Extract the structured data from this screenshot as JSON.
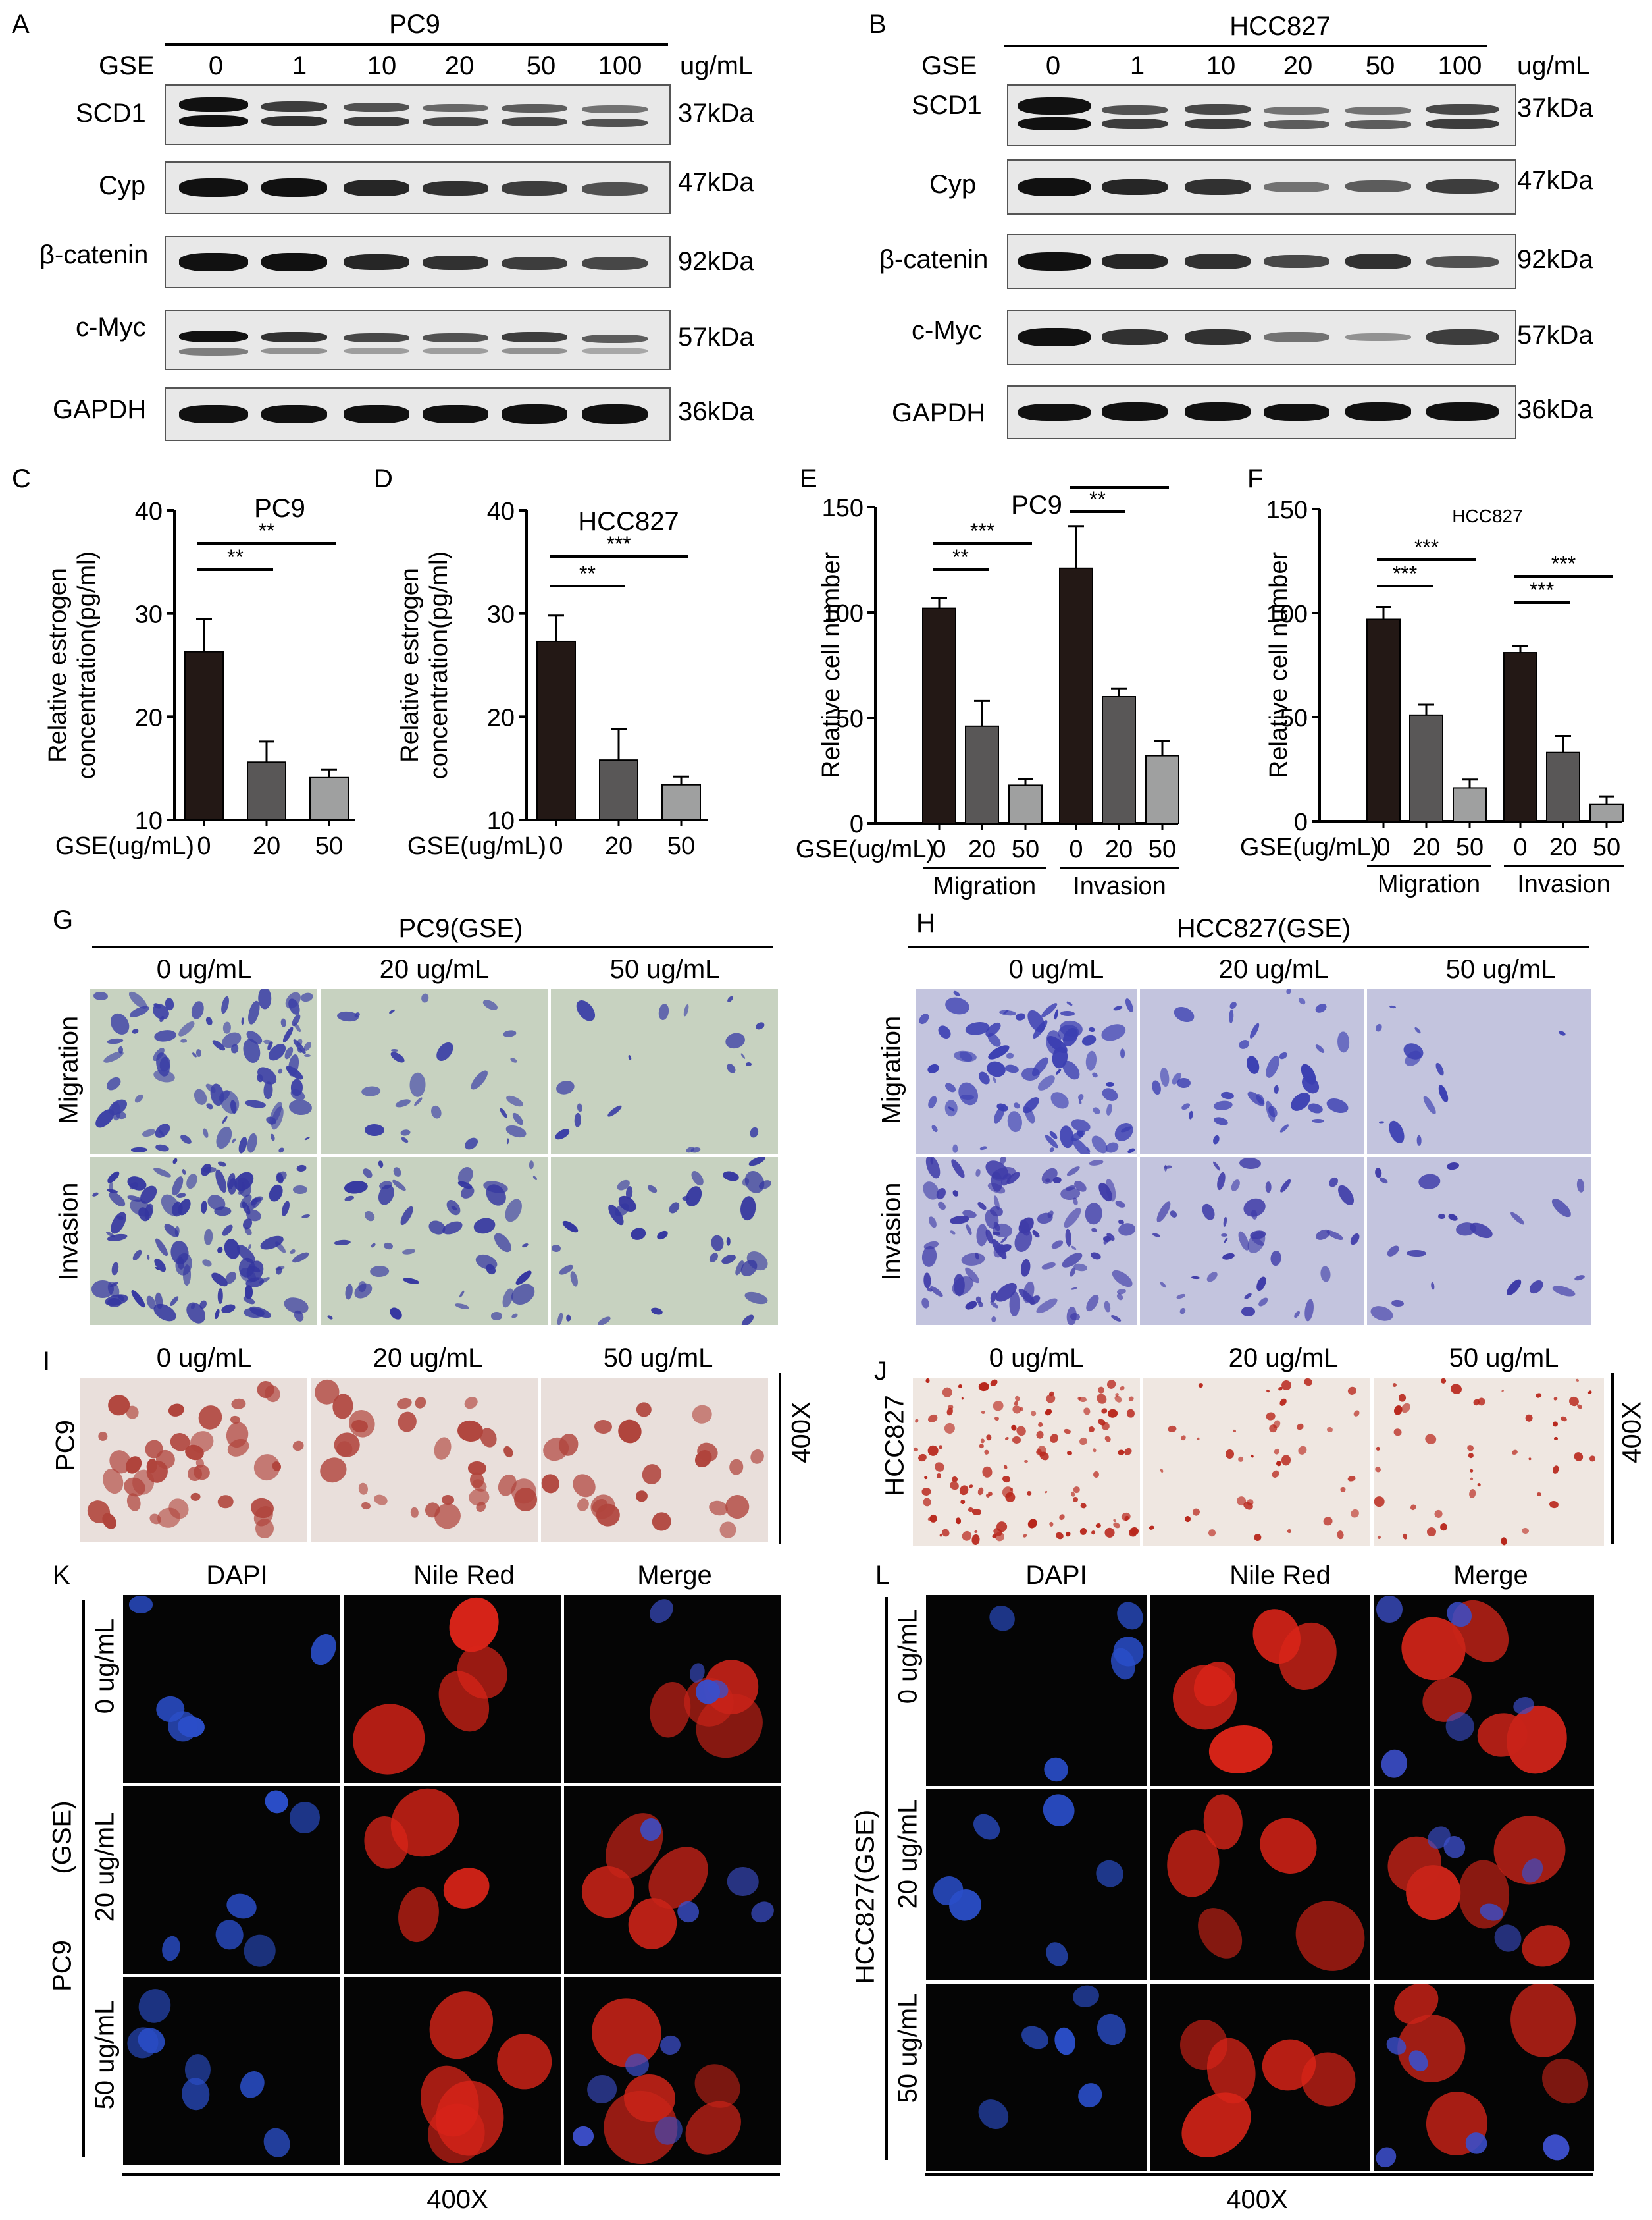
{
  "panels": {
    "A": "A",
    "B": "B",
    "C": "C",
    "D": "D",
    "E": "E",
    "F": "F",
    "G": "G",
    "H": "H",
    "I": "I",
    "J": "J",
    "K": "K",
    "L": "L"
  },
  "western": {
    "A": {
      "cell_line": "PC9",
      "treatment_label": "GSE",
      "unit": "ug/mL",
      "doses": [
        "0",
        "1",
        "10",
        "20",
        "50",
        "100"
      ],
      "proteins": [
        {
          "name": "SCD1",
          "size": "37kDa"
        },
        {
          "name": "Cyp",
          "size": "47kDa"
        },
        {
          "name": "β-catenin",
          "size": "92kDa"
        },
        {
          "name": "c-Myc",
          "size": "57kDa"
        },
        {
          "name": "GAPDH",
          "size": "36kDa"
        }
      ]
    },
    "B": {
      "cell_line": "HCC827",
      "treatment_label": "GSE",
      "unit": "ug/mL",
      "doses": [
        "0",
        "1",
        "10",
        "20",
        "50",
        "100"
      ],
      "proteins": [
        {
          "name": "SCD1",
          "size": "37kDa"
        },
        {
          "name": "Cyp",
          "size": "47kDa"
        },
        {
          "name": "β-catenin",
          "size": "92kDa"
        },
        {
          "name": "c-Myc",
          "size": "57kDa"
        },
        {
          "name": "GAPDH",
          "size": "36kDa"
        }
      ]
    }
  },
  "chart_data": [
    {
      "panel": "C",
      "type": "bar",
      "title": "PC9",
      "ylabel": "Relative estrogen concentration(pg/ml)",
      "xlabel": "GSE(ug/mL)",
      "categories": [
        "0",
        "20",
        "50"
      ],
      "values": [
        26.3,
        15.6,
        14.1
      ],
      "errors": [
        3.2,
        2.0,
        0.8
      ],
      "colors": [
        "#231815",
        "#595757",
        "#9fa0a0"
      ],
      "ylim": [
        10,
        40
      ],
      "yticks": [
        "10",
        "20",
        "30",
        "40"
      ],
      "significance": [
        {
          "from": 0,
          "to": 1,
          "label": "**"
        },
        {
          "from": 0,
          "to": 2,
          "label": "**"
        }
      ]
    },
    {
      "panel": "D",
      "type": "bar",
      "title": "HCC827",
      "ylabel": "Relative estrogen concentration(pg/ml)",
      "xlabel": "GSE(ug/mL)",
      "categories": [
        "0",
        "20",
        "50"
      ],
      "values": [
        27.3,
        15.8,
        13.4
      ],
      "errors": [
        2.5,
        3.0,
        0.8
      ],
      "colors": [
        "#231815",
        "#595757",
        "#9fa0a0"
      ],
      "ylim": [
        10,
        40
      ],
      "yticks": [
        "10",
        "20",
        "30",
        "40"
      ],
      "significance": [
        {
          "from": 0,
          "to": 1,
          "label": "**"
        },
        {
          "from": 0,
          "to": 2,
          "label": "***"
        }
      ]
    },
    {
      "panel": "E",
      "type": "bar",
      "title": "PC9",
      "ylabel": "Relative cell number",
      "xlabel": "GSE(ug/mL)",
      "groups": [
        "Migration",
        "Invasion"
      ],
      "categories": [
        "0",
        "20",
        "50",
        "0",
        "20",
        "50"
      ],
      "values": [
        102,
        46,
        18,
        121,
        60,
        32
      ],
      "errors": [
        5,
        12,
        3,
        20,
        4,
        7
      ],
      "colors": [
        "#231815",
        "#595757",
        "#9fa0a0",
        "#231815",
        "#595757",
        "#9fa0a0"
      ],
      "ylim": [
        0,
        150
      ],
      "yticks": [
        "0",
        "50",
        "100",
        "150"
      ],
      "significance": [
        {
          "from": 0,
          "to": 1,
          "label": "**"
        },
        {
          "from": 0,
          "to": 2,
          "label": "***"
        },
        {
          "from": 3,
          "to": 4,
          "label": "**"
        },
        {
          "from": 3,
          "to": 5,
          "label": "**"
        }
      ]
    },
    {
      "panel": "F",
      "type": "bar",
      "title": "HCC827",
      "ylabel": "Relative cell number",
      "xlabel": "GSE(ug/mL)",
      "groups": [
        "Migration",
        "Invasion"
      ],
      "categories": [
        "0",
        "20",
        "50",
        "0",
        "20",
        "50"
      ],
      "values": [
        97,
        51,
        16,
        81,
        33,
        8
      ],
      "errors": [
        6,
        5,
        4,
        3,
        8,
        4
      ],
      "colors": [
        "#231815",
        "#595757",
        "#9fa0a0",
        "#231815",
        "#595757",
        "#9fa0a0"
      ],
      "ylim": [
        0,
        150
      ],
      "yticks": [
        "0",
        "50",
        "100",
        "150"
      ],
      "significance": [
        {
          "from": 0,
          "to": 1,
          "label": "***"
        },
        {
          "from": 0,
          "to": 2,
          "label": "***"
        },
        {
          "from": 3,
          "to": 4,
          "label": "***"
        },
        {
          "from": 3,
          "to": 5,
          "label": "***"
        }
      ]
    }
  ],
  "transwell": {
    "G": {
      "title": "PC9(GSE)",
      "columns": [
        "0 ug/mL",
        "20 ug/mL",
        "50 ug/mL"
      ],
      "rows": [
        "Migration",
        "Invasion"
      ]
    },
    "H": {
      "title": "HCC827(GSE)",
      "columns": [
        "0 ug/mL",
        "20 ug/mL",
        "50 ug/mL"
      ],
      "rows": [
        "Migration",
        "Invasion"
      ]
    }
  },
  "oilred": {
    "I": {
      "cell_line": "PC9",
      "columns": [
        "0 ug/mL",
        "20 ug/mL",
        "50 ug/mL"
      ],
      "magnification": "400X"
    },
    "J": {
      "cell_line": "HCC827",
      "columns": [
        "0 ug/mL",
        "20 ug/mL",
        "50 ug/mL"
      ],
      "magnification": "400X"
    }
  },
  "nilered": {
    "K": {
      "cell_line": "PC9",
      "group": "(GSE)",
      "columns": [
        "DAPI",
        "Nile Red",
        "Merge"
      ],
      "rows": [
        "0 ug/mL",
        "20 ug/mL",
        "50 ug/mL"
      ],
      "magnification": "400X"
    },
    "L": {
      "cell_line": "HCC827(GSE)",
      "columns": [
        "DAPI",
        "Nile Red",
        "Merge"
      ],
      "rows": [
        "0 ug/mL",
        "20 ug/mL",
        "50 ug/mL"
      ],
      "magnification": "400X"
    }
  }
}
